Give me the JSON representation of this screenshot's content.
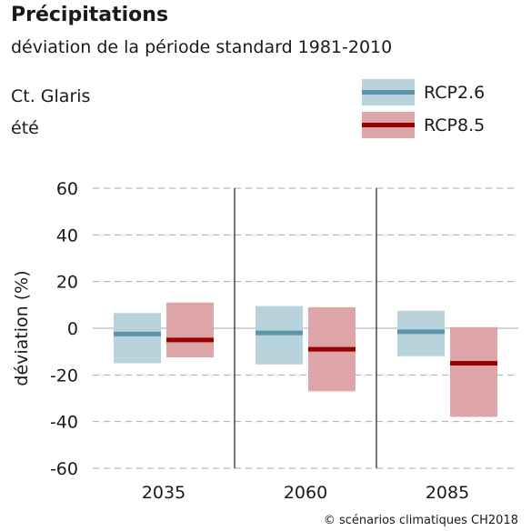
{
  "header": {
    "title": "Précipitations",
    "subtitle": "déviation de la période standard 1981-2010",
    "location": "Ct. Glaris",
    "season": "été"
  },
  "source": "© scénarios climatiques CH2018",
  "colors": {
    "rcp26_box": "#b9d3dc",
    "rcp26_line": "#5e93a8",
    "rcp85_box": "#dea5a8",
    "rcp85_line": "#990000",
    "grid": "#aaaaaa",
    "axis": "#1a1a1a"
  },
  "chart_data": {
    "type": "bar",
    "title": "Précipitations",
    "subtitle": "déviation de la période standard 1981-2010",
    "ylabel": "déviation (%)",
    "xlabel": "",
    "ylim": [
      -60,
      60
    ],
    "yticks": [
      60,
      40,
      20,
      0,
      -20,
      -40,
      -60
    ],
    "grid": true,
    "legend_position": "top-right",
    "categories": [
      "2035",
      "2060",
      "2085"
    ],
    "series": [
      {
        "name": "RCP2.6",
        "low": [
          -15,
          -15.5,
          -12
        ],
        "median": [
          -2.5,
          -2,
          -1.5
        ],
        "high": [
          6.5,
          9.5,
          7.5
        ]
      },
      {
        "name": "RCP8.5",
        "low": [
          -12.5,
          -27,
          -38
        ],
        "median": [
          -5,
          -9,
          -15
        ],
        "high": [
          11,
          9,
          0.5
        ]
      }
    ]
  }
}
